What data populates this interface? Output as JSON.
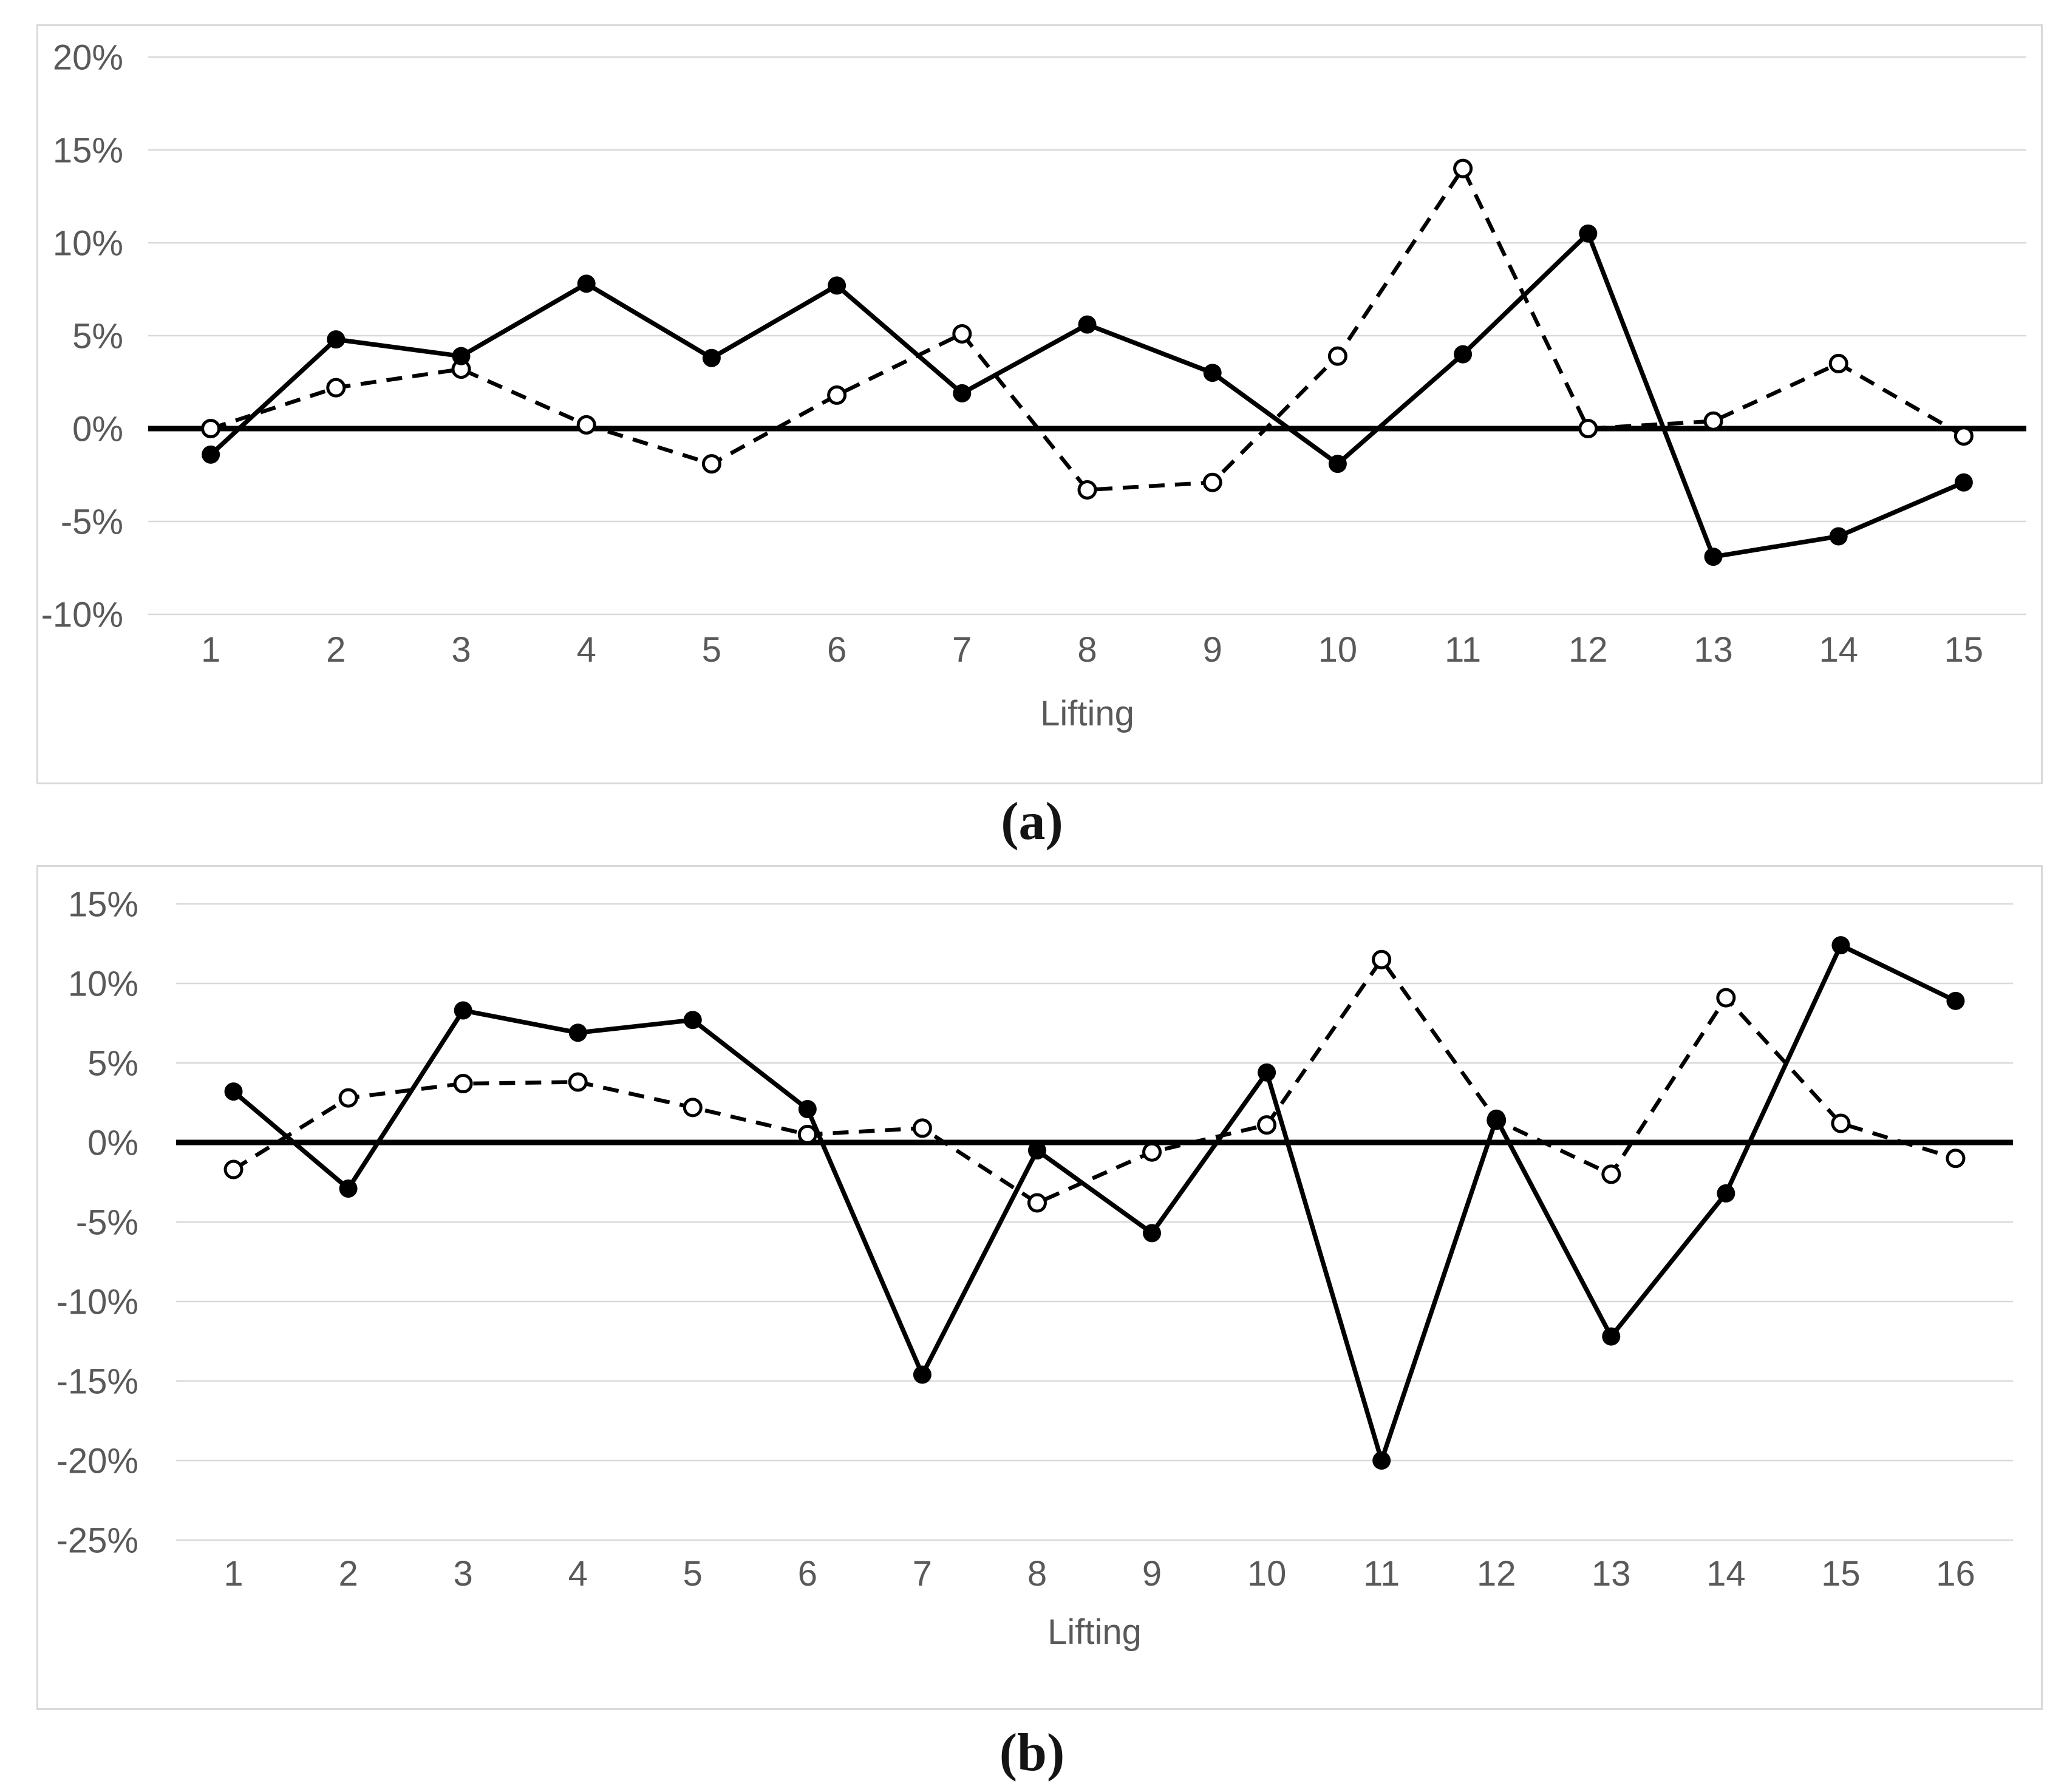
{
  "figure": {
    "caption_a": "(a)",
    "caption_b": "(b)",
    "colors": {
      "series": "#000000",
      "zero_axis": "#000000",
      "gridline": "#d9d9d9",
      "panel_border": "#d9d9d9",
      "tick_text": "#595959",
      "background": "#ffffff"
    }
  },
  "chart_data": [
    {
      "id": "a",
      "type": "line",
      "caption": "(a)",
      "title": "",
      "xlabel": "Lifting",
      "ylabel": "",
      "grid": true,
      "legend": "none",
      "ylim": [
        -10,
        20
      ],
      "ytick_values": [
        20,
        15,
        10,
        5,
        0,
        -5,
        -10
      ],
      "ytick_labels": [
        "20%",
        "15%",
        "10%",
        "5%",
        "0%",
        "-5%",
        "-10%"
      ],
      "categories": [
        "1",
        "2",
        "3",
        "4",
        "5",
        "6",
        "7",
        "8",
        "9",
        "10",
        "11",
        "12",
        "13",
        "14",
        "15"
      ],
      "series": [
        {
          "name": "solid_filled_markers",
          "line_style": "solid",
          "marker": "filled-circle",
          "values": [
            -1.4,
            4.8,
            3.9,
            7.8,
            3.8,
            7.7,
            1.9,
            5.6,
            3.0,
            -1.9,
            4.0,
            10.5,
            -6.9,
            -5.8,
            -2.9
          ]
        },
        {
          "name": "dashed_open_markers",
          "line_style": "dashed",
          "marker": "open-circle",
          "values": [
            0.0,
            2.2,
            3.2,
            0.2,
            -1.9,
            1.8,
            5.1,
            -3.3,
            -2.9,
            3.9,
            14.0,
            0.0,
            0.4,
            3.5,
            -0.4
          ]
        }
      ]
    },
    {
      "id": "b",
      "type": "line",
      "caption": "(b)",
      "title": "",
      "xlabel": "Lifting",
      "ylabel": "",
      "grid": true,
      "legend": "none",
      "ylim": [
        -25,
        15
      ],
      "ytick_values": [
        15,
        10,
        5,
        0,
        -5,
        -10,
        -15,
        -20,
        -25
      ],
      "ytick_labels": [
        "15%",
        "10%",
        "5%",
        "0%",
        "-5%",
        "-10%",
        "-15%",
        "-20%",
        "-25%"
      ],
      "categories": [
        "1",
        "2",
        "3",
        "4",
        "5",
        "6",
        "7",
        "8",
        "9",
        "10",
        "11",
        "12",
        "13",
        "14",
        "15",
        "16"
      ],
      "series": [
        {
          "name": "solid_filled_markers",
          "line_style": "solid",
          "marker": "filled-circle",
          "values": [
            3.2,
            -2.9,
            8.3,
            6.9,
            7.7,
            2.1,
            -14.6,
            -0.5,
            -5.7,
            4.4,
            -20.0,
            1.5,
            -12.2,
            -3.2,
            12.4,
            8.9
          ]
        },
        {
          "name": "dashed_open_markers",
          "line_style": "dashed",
          "marker": "open-circle",
          "values": [
            -1.7,
            2.8,
            3.7,
            3.8,
            2.2,
            0.5,
            0.9,
            -3.8,
            -0.6,
            1.1,
            11.5,
            1.4,
            -2.0,
            9.1,
            1.2,
            -1.0
          ]
        }
      ]
    }
  ]
}
